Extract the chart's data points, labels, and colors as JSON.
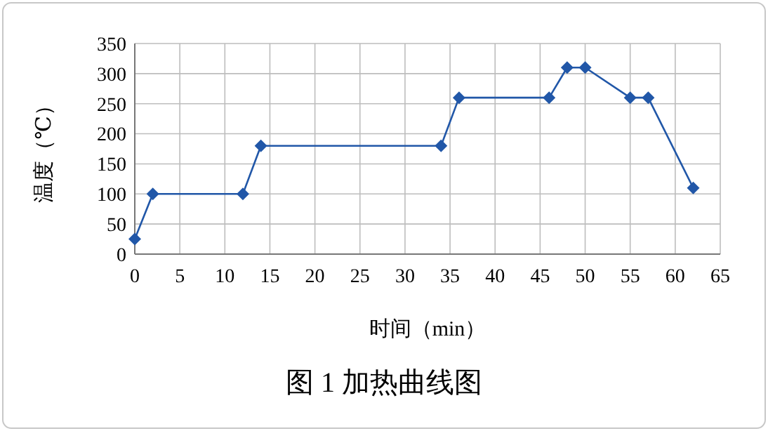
{
  "chart_data": {
    "type": "line",
    "title": "图 1  加热曲线图",
    "xlabel": "时间（min）",
    "ylabel": "温度（℃）",
    "x": [
      0,
      2,
      12,
      14,
      34,
      36,
      46,
      48,
      50,
      55,
      57,
      62
    ],
    "series": [
      {
        "color": "#2157a8",
        "values": [
          25,
          100,
          100,
          180,
          180,
          260,
          260,
          310,
          310,
          260,
          260,
          110
        ]
      }
    ],
    "xlim": [
      0,
      65
    ],
    "xticks": [
      0,
      5,
      10,
      15,
      20,
      25,
      30,
      35,
      40,
      45,
      50,
      55,
      60,
      65
    ],
    "ylim": [
      0,
      350
    ],
    "yticks": [
      0,
      50,
      100,
      150,
      200,
      250,
      300,
      350
    ],
    "grid": true,
    "marker": "diamond",
    "line_style": "solid"
  }
}
